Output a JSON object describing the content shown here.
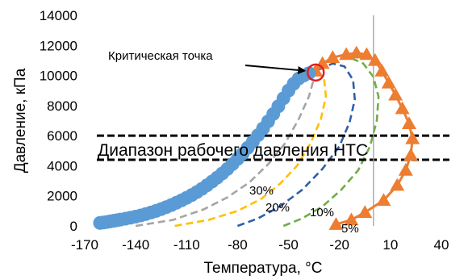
{
  "chart_data": {
    "type": "scatter",
    "xlabel": "Температура, °C",
    "ylabel": "Давление, кПа",
    "xlim": [
      -170,
      40
    ],
    "ylim": [
      0,
      14000
    ],
    "x_ticks": [
      -170,
      -140,
      -110,
      -80,
      -50,
      -20,
      10,
      40
    ],
    "y_ticks": [
      0,
      2000,
      4000,
      6000,
      8000,
      10000,
      12000,
      14000
    ],
    "grid": false,
    "colors": {
      "blue": "#5b9bd5",
      "orange": "#ed7d31",
      "gray": "#a5a5a5",
      "yellow": "#ffc000",
      "darkblue": "#2e5fa8",
      "green": "#70ad47",
      "critical": "#e02020",
      "band": "#000000",
      "vline": "#a0a0a0"
    },
    "annotations": {
      "critical_point_label": "Критическая точка",
      "band_label": "Диапазон рабочего давления НТС",
      "q30": "30%",
      "q20": "20%",
      "q10": "10%",
      "q5": "5%"
    },
    "critical_point": {
      "x": -34,
      "y": 10200
    },
    "band": {
      "upper": 6000,
      "lower": 4400
    },
    "vline_x": 0,
    "series": [
      {
        "style": "bubble-point",
        "color": "blue",
        "points": [
          [
            -161,
            200
          ],
          [
            -159,
            230
          ],
          [
            -157,
            260
          ],
          [
            -155,
            300
          ],
          [
            -153,
            340
          ],
          [
            -151,
            380
          ],
          [
            -149,
            420
          ],
          [
            -146,
            480
          ],
          [
            -143,
            550
          ],
          [
            -140,
            620
          ],
          [
            -137,
            700
          ],
          [
            -134,
            790
          ],
          [
            -131,
            890
          ],
          [
            -128,
            1000
          ],
          [
            -125,
            1120
          ],
          [
            -122,
            1250
          ],
          [
            -119,
            1390
          ],
          [
            -116,
            1540
          ],
          [
            -113,
            1700
          ],
          [
            -110,
            1870
          ],
          [
            -107,
            2050
          ],
          [
            -104,
            2250
          ],
          [
            -101,
            2470
          ],
          [
            -98,
            2700
          ],
          [
            -95,
            2950
          ],
          [
            -92,
            3210
          ],
          [
            -89,
            3490
          ],
          [
            -86,
            3790
          ],
          [
            -83,
            4110
          ],
          [
            -80,
            4450
          ],
          [
            -77,
            4810
          ],
          [
            -74,
            5200
          ],
          [
            -71,
            5600
          ],
          [
            -68,
            6030
          ],
          [
            -65,
            6480
          ],
          [
            -62,
            6950
          ],
          [
            -59,
            7440
          ],
          [
            -56,
            7950
          ],
          [
            -53,
            8480
          ],
          [
            -50,
            9000
          ],
          [
            -47,
            9450
          ],
          [
            -44,
            9800
          ],
          [
            -41,
            10000
          ],
          [
            -38,
            10150
          ]
        ]
      },
      {
        "style": "dew-point",
        "color": "orange",
        "points": [
          [
            -22,
            100
          ],
          [
            -13,
            400
          ],
          [
            -5,
            900
          ],
          [
            6,
            1700
          ],
          [
            14,
            2700
          ],
          [
            19,
            3700
          ],
          [
            22,
            4700
          ],
          [
            23,
            5800
          ],
          [
            21,
            6800
          ],
          [
            17,
            7800
          ],
          [
            13,
            8700
          ],
          [
            9,
            9500
          ],
          [
            5,
            10300
          ],
          [
            1,
            11000
          ],
          [
            -4,
            11400
          ],
          [
            -10,
            11500
          ],
          [
            -16,
            11400
          ],
          [
            -24,
            11200
          ],
          [
            -30,
            10800
          ],
          [
            -34,
            10300
          ]
        ]
      },
      {
        "style": "quality",
        "name": "30%",
        "color": "gray",
        "points": [
          [
            -140,
            0
          ],
          [
            -118,
            400
          ],
          [
            -100,
            1100
          ],
          [
            -86,
            1900
          ],
          [
            -73,
            2900
          ],
          [
            -62,
            4100
          ],
          [
            -52,
            5500
          ],
          [
            -44,
            7100
          ],
          [
            -38,
            8600
          ],
          [
            -35,
            9800
          ]
        ]
      },
      {
        "style": "quality",
        "name": "20%",
        "color": "yellow",
        "points": [
          [
            -117,
            0
          ],
          [
            -97,
            400
          ],
          [
            -80,
            1000
          ],
          [
            -66,
            1800
          ],
          [
            -55,
            2800
          ],
          [
            -45,
            4000
          ],
          [
            -37,
            5500
          ],
          [
            -31,
            7100
          ],
          [
            -28,
            8600
          ],
          [
            -29,
            9700
          ],
          [
            -33,
            10200
          ]
        ]
      },
      {
        "style": "quality",
        "name": "10%",
        "color": "darkblue",
        "points": [
          [
            -80,
            0
          ],
          [
            -68,
            500
          ],
          [
            -55,
            1300
          ],
          [
            -42,
            2400
          ],
          [
            -30,
            3800
          ],
          [
            -20,
            5300
          ],
          [
            -14,
            6900
          ],
          [
            -11,
            8400
          ],
          [
            -12,
            9700
          ],
          [
            -17,
            10600
          ],
          [
            -24,
            10800
          ],
          [
            -32,
            10400
          ]
        ]
      },
      {
        "style": "quality",
        "name": "5%",
        "color": "green",
        "points": [
          [
            -53,
            0
          ],
          [
            -42,
            500
          ],
          [
            -30,
            1300
          ],
          [
            -19,
            2400
          ],
          [
            -9,
            3700
          ],
          [
            -2,
            5300
          ],
          [
            2,
            7000
          ],
          [
            3,
            8600
          ],
          [
            0,
            9900
          ],
          [
            -6,
            10800
          ],
          [
            -14,
            11200
          ],
          [
            -22,
            11100
          ],
          [
            -30,
            10600
          ],
          [
            -34,
            10200
          ]
        ]
      }
    ]
  }
}
